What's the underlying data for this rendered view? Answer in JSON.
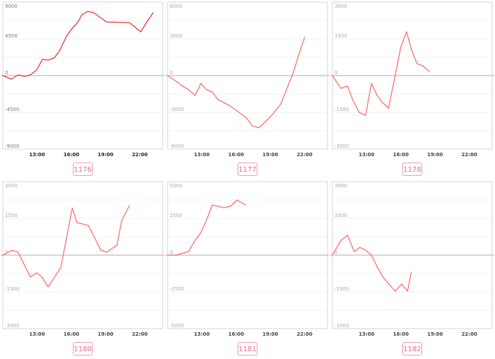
{
  "chart_data": [
    {
      "type": "line",
      "label": "1176",
      "line_color": "#e8383d",
      "ylim": [
        -9000,
        9000
      ],
      "yticks": [
        "9000",
        "4500",
        "0",
        "-4500",
        "-9000"
      ],
      "xlim": [
        "10:00",
        "24:00"
      ],
      "xticks": [
        "13:00",
        "16:00",
        "19:00",
        "22:00"
      ],
      "grid": true,
      "x": [
        "10:00",
        "10:45",
        "11:20",
        "11:55",
        "12:25",
        "12:58",
        "13:28",
        "13:58",
        "14:30",
        "15:00",
        "15:35",
        "16:05",
        "16:35",
        "16:55",
        "17:25",
        "17:58",
        "19:05",
        "21:05",
        "22:05",
        "22:35",
        "23:10"
      ],
      "values": [
        0,
        -430,
        90,
        -90,
        90,
        700,
        2000,
        1900,
        2160,
        3110,
        4840,
        5800,
        6570,
        7440,
        7870,
        7700,
        6570,
        6490,
        5360,
        6490,
        7700
      ]
    },
    {
      "type": "line",
      "label": "1177",
      "line_color": "#ff6f6f",
      "ylim": [
        -6000,
        6000
      ],
      "yticks": [
        "6000",
        "3000",
        "0",
        "-3000",
        "-6000"
      ],
      "xlim": [
        "10:00",
        "24:00"
      ],
      "xticks": [
        "13:00",
        "16:00",
        "19:00",
        "22:00"
      ],
      "grid": true,
      "x": [
        "10:00",
        "10:45",
        "11:20",
        "11:50",
        "12:25",
        "12:55",
        "13:25",
        "13:55",
        "14:25",
        "14:55",
        "15:30",
        "16:55",
        "17:25",
        "18:00",
        "19:05",
        "19:55",
        "20:25",
        "21:00",
        "21:30",
        "22:00"
      ],
      "values": [
        0,
        -460,
        -870,
        -1150,
        -1620,
        -640,
        -1150,
        -1330,
        -1960,
        -2190,
        -2480,
        -3460,
        -4100,
        -4270,
        -3290,
        -2310,
        -1150,
        230,
        1730,
        3120
      ]
    },
    {
      "type": "line",
      "label": "1178",
      "line_color": "#ff6f6f",
      "ylim": [
        -3000,
        3000
      ],
      "yticks": [
        "3000",
        "1500",
        "0",
        "-1500",
        "-3000"
      ],
      "xlim": [
        "10:00",
        "24:00"
      ],
      "xticks": [
        "13:00",
        "16:00",
        "19:00",
        "22:00"
      ],
      "grid": true,
      "x": [
        "10:00",
        "10:45",
        "11:20",
        "11:45",
        "12:20",
        "12:55",
        "13:25",
        "13:55",
        "14:20",
        "14:55",
        "15:30",
        "16:00",
        "16:30",
        "16:55",
        "17:25",
        "17:55",
        "18:30"
      ],
      "values": [
        0,
        -520,
        -430,
        -950,
        -1500,
        -1620,
        -320,
        -800,
        -1070,
        -1330,
        0,
        1180,
        1790,
        1070,
        490,
        400,
        170
      ]
    },
    {
      "type": "line",
      "label": "1180",
      "line_color": "#ff6f6f",
      "ylim": [
        -3000,
        3000
      ],
      "yticks": [
        "3000",
        "1500",
        "0",
        "-1500",
        "-3000"
      ],
      "xlim": [
        "10:00",
        "24:00"
      ],
      "xticks": [
        "13:00",
        "16:00",
        "19:00",
        "22:00"
      ],
      "grid": true,
      "x": [
        "10:00",
        "10:50",
        "11:20",
        "12:25",
        "12:58",
        "13:25",
        "13:58",
        "15:05",
        "16:05",
        "16:30",
        "17:30",
        "18:35",
        "19:05",
        "20:00",
        "20:25",
        "21:05"
      ],
      "values": [
        0,
        200,
        120,
        -890,
        -720,
        -890,
        -1300,
        -500,
        1920,
        1330,
        1210,
        200,
        120,
        400,
        1410,
        2020
      ]
    },
    {
      "type": "line",
      "label": "1181",
      "line_color": "#ff6f6f",
      "ylim": [
        -5000,
        5000
      ],
      "yticks": [
        "5000",
        "2500",
        "0",
        "-2500",
        "-5000"
      ],
      "xlim": [
        "10:00",
        "24:00"
      ],
      "xticks": [
        "13:00",
        "16:00",
        "19:00",
        "22:00"
      ],
      "grid": true,
      "x": [
        "10:00",
        "10:45",
        "11:50",
        "12:25",
        "12:55",
        "13:25",
        "13:55",
        "14:55",
        "15:30",
        "16:05",
        "16:50"
      ],
      "values": [
        0,
        0,
        240,
        1010,
        1540,
        2400,
        3410,
        3220,
        3320,
        3750,
        3410
      ]
    },
    {
      "type": "line",
      "label": "1182",
      "line_color": "#ff6f6f",
      "ylim": [
        -3000,
        3000
      ],
      "yticks": [
        "3000",
        "1500",
        "0",
        "-1500",
        "-3000"
      ],
      "xlim": [
        "10:00",
        "24:00"
      ],
      "xticks": [
        "13:00",
        "16:00",
        "19:00",
        "22:00"
      ],
      "grid": true,
      "x": [
        "10:00",
        "10:45",
        "11:20",
        "11:55",
        "12:25",
        "12:55",
        "13:25",
        "13:55",
        "14:25",
        "15:30",
        "16:05",
        "16:35",
        "16:55"
      ],
      "values": [
        0,
        600,
        810,
        140,
        320,
        200,
        0,
        -460,
        -890,
        -1470,
        -1180,
        -1470,
        -690
      ]
    }
  ],
  "colors": {
    "frame": "#dddddd",
    "grid": "#f0f0f0",
    "zero_line": "#c8c8c8",
    "tag_border": "#f39ab5",
    "tag_text": "#ec6b93"
  }
}
